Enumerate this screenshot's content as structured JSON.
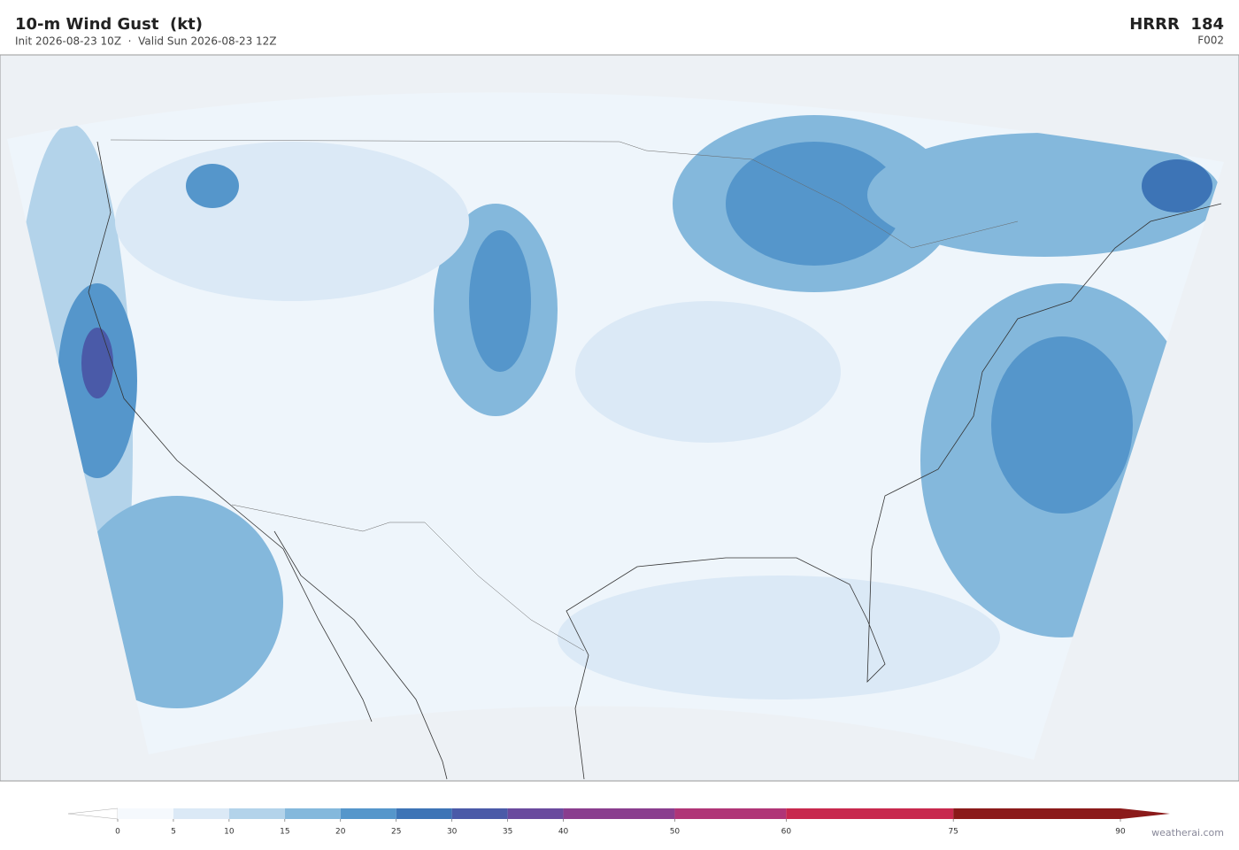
{
  "header": {
    "title": "10-m Wind Gust  (kt)",
    "subtitle": "Init 2026-08-23 10Z  ·  Valid Sun 2026-08-23 12Z",
    "model": "HRRR  184",
    "forecast_hour": "F002"
  },
  "colorbar": {
    "bounds": [
      0,
      5,
      10,
      15,
      20,
      25,
      30,
      35,
      40,
      50,
      60,
      75,
      90
    ],
    "colors": [
      "#f5f9fd",
      "#dbe9f6",
      "#b3d3ea",
      "#84b8dc",
      "#5596cb",
      "#3d74b6",
      "#4a5aa8",
      "#6a4a9e",
      "#8a3d8e",
      "#b03577",
      "#c8284e",
      "#8b1a1a"
    ],
    "under_color": "#ffffff",
    "over_color": "#8b1a1a"
  },
  "watermark": "weatherai.com"
}
